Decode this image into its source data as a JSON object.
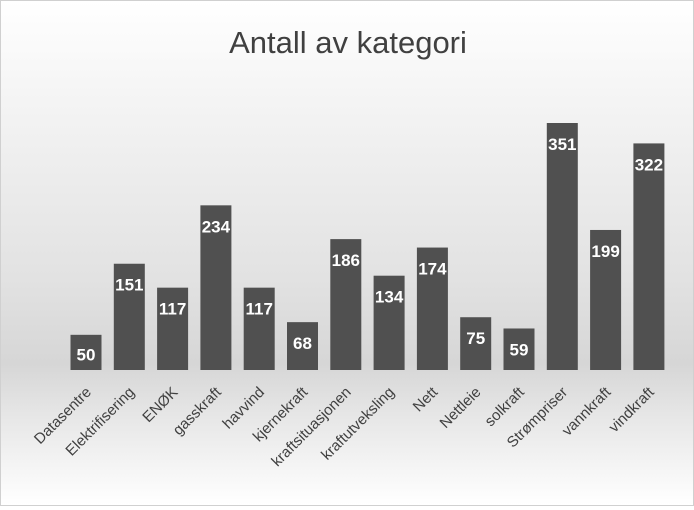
{
  "chart_data": {
    "type": "bar",
    "title": "Antall av kategori",
    "categories": [
      "Datasentre",
      "Elektrifisering",
      "ENØK",
      "gasskraft",
      "havvind",
      "kjernekraft",
      "kraftsituasjonen",
      "kraftutveksling",
      "Nett",
      "Nettleie",
      "solkraft",
      "Strømpriser",
      "vannkraft",
      "vindkraft"
    ],
    "values": [
      50,
      151,
      117,
      234,
      117,
      68,
      186,
      134,
      174,
      75,
      59,
      351,
      199,
      322
    ],
    "xlabel": "",
    "ylabel": "",
    "ylim": [
      0,
      351
    ],
    "grid": false,
    "legend": "none",
    "data_labels": true,
    "colors": {
      "bar": "#505050",
      "label": "#ffffff",
      "title": "#404040",
      "axis_text": "#404040"
    }
  }
}
